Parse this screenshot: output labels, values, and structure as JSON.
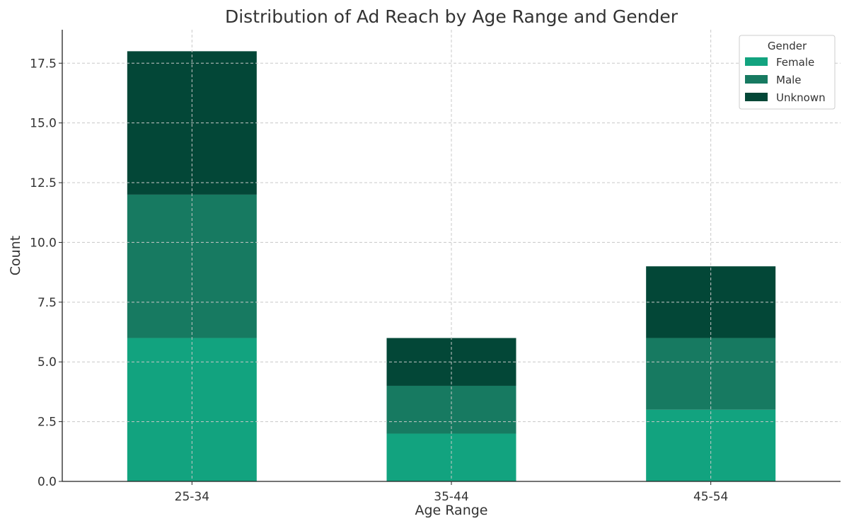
{
  "chart_data": {
    "type": "bar",
    "stacked": true,
    "title": "Distribution of Ad Reach by Age Range and Gender",
    "xlabel": "Age Range",
    "ylabel": "Count",
    "categories": [
      "25-34",
      "35-44",
      "45-54"
    ],
    "series": [
      {
        "name": "Female",
        "values": [
          6,
          2,
          3
        ],
        "color": "#12A37F"
      },
      {
        "name": "Male",
        "values": [
          6,
          2,
          3
        ],
        "color": "#177A61"
      },
      {
        "name": "Unknown",
        "values": [
          6,
          2,
          3
        ],
        "color": "#034737"
      }
    ],
    "ylim": [
      0,
      18.9
    ],
    "yticks": [
      "0.0",
      "2.5",
      "5.0",
      "7.5",
      "10.0",
      "12.5",
      "15.0",
      "17.5"
    ],
    "grid": true,
    "legend": {
      "title": "Gender",
      "placement": "top-right"
    }
  }
}
